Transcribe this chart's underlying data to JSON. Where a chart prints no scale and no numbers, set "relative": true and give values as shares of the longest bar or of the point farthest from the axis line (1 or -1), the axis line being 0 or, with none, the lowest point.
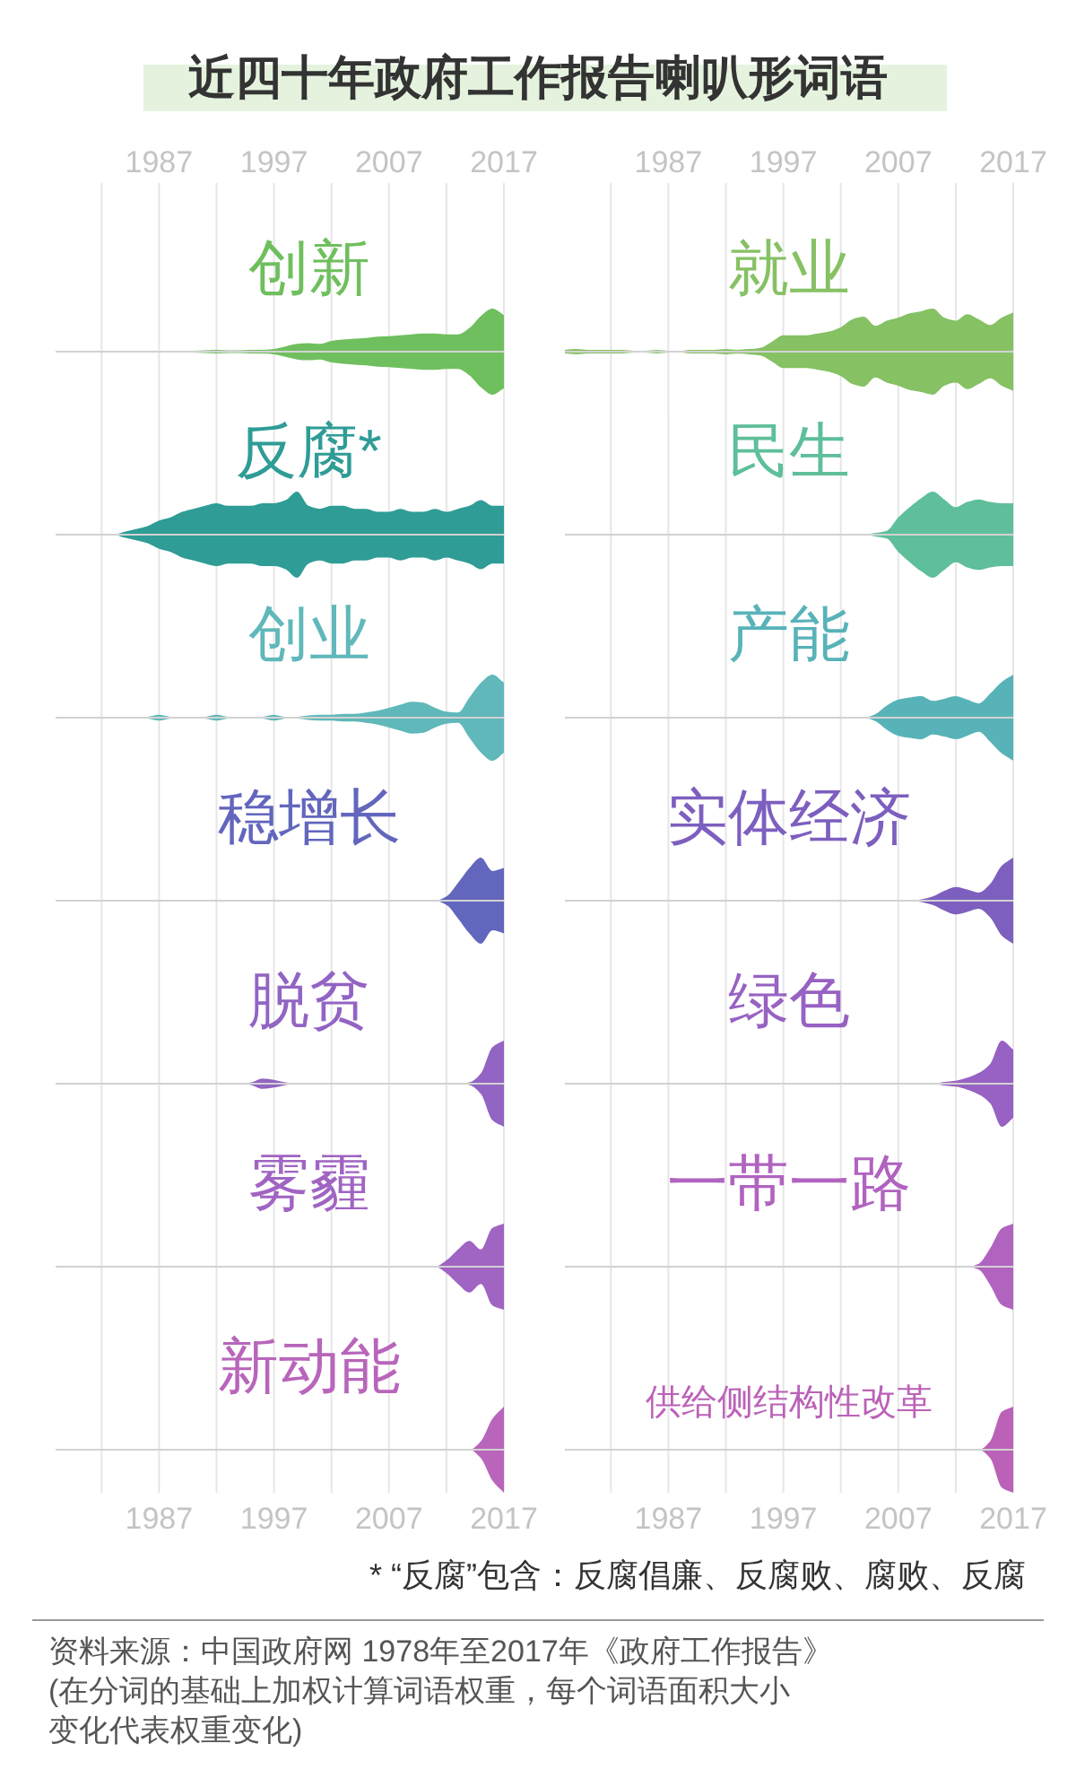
{
  "chart_data": [
    {
      "type": "area",
      "relative": true,
      "title": "近四十年政府工作报告喇叭形词语",
      "x": [
        1978,
        1979,
        1980,
        1981,
        1982,
        1983,
        1984,
        1985,
        1986,
        1987,
        1988,
        1989,
        1990,
        1991,
        1992,
        1993,
        1994,
        1995,
        1996,
        1997,
        1998,
        1999,
        2000,
        2001,
        2002,
        2003,
        2004,
        2005,
        2006,
        2007,
        2008,
        2009,
        2010,
        2011,
        2012,
        2013,
        2014,
        2015,
        2016,
        2017
      ],
      "xlim": [
        1978,
        2017
      ],
      "xticks": [
        {
          "value": 1982,
          "label": null
        },
        1987,
        {
          "value": 1992,
          "label": null
        },
        1997,
        {
          "value": 2002,
          "label": null
        },
        2007,
        {
          "value": 2012,
          "label": null
        },
        2017
      ],
      "grid": "x",
      "series": [
        {
          "name": "创新",
          "color": "#6fbf5e",
          "values": [
            0,
            0,
            0.01,
            0.01,
            0.01,
            0.01,
            0.01,
            0.02,
            0.01,
            0.01,
            0.01,
            0.01,
            0.02,
            0.03,
            0.04,
            0.03,
            0.03,
            0.04,
            0.04,
            0.06,
            0.12,
            0.18,
            0.2,
            0.18,
            0.25,
            0.28,
            0.3,
            0.32,
            0.35,
            0.36,
            0.38,
            0.4,
            0.42,
            0.42,
            0.4,
            0.4,
            0.55,
            0.83,
            1,
            0.85
          ]
        }
      ]
    },
    {
      "type": "area",
      "relative": true,
      "x": [
        1978,
        1979,
        1980,
        1981,
        1982,
        1983,
        1984,
        1985,
        1986,
        1987,
        1988,
        1989,
        1990,
        1991,
        1992,
        1993,
        1994,
        1995,
        1996,
        1997,
        1998,
        1999,
        2000,
        2001,
        2002,
        2003,
        2004,
        2005,
        2006,
        2007,
        2008,
        2009,
        2010,
        2011,
        2012,
        2013,
        2014,
        2015,
        2016,
        2017
      ],
      "xlim": [
        1978,
        2017
      ],
      "xticks": [
        {
          "value": 1982,
          "label": null
        },
        1987,
        {
          "value": 1992,
          "label": null
        },
        1997,
        {
          "value": 2002,
          "label": null
        },
        2007,
        {
          "value": 2012,
          "label": null
        },
        2017
      ],
      "grid": "x",
      "series": [
        {
          "name": "就业",
          "color": "#86c164",
          "values": [
            0.04,
            0.06,
            0.04,
            0.04,
            0.04,
            0.04,
            0.02,
            0.02,
            0.04,
            0.02,
            0.02,
            0.04,
            0.04,
            0.04,
            0.06,
            0.04,
            0.06,
            0.09,
            0.23,
            0.38,
            0.38,
            0.38,
            0.42,
            0.47,
            0.57,
            0.75,
            0.81,
            0.6,
            0.72,
            0.79,
            0.89,
            0.94,
            1,
            0.79,
            0.72,
            0.87,
            0.75,
            0.62,
            0.79,
            0.91
          ]
        }
      ]
    },
    {
      "type": "area",
      "relative": true,
      "x": [
        1978,
        1979,
        1980,
        1981,
        1982,
        1983,
        1984,
        1985,
        1986,
        1987,
        1988,
        1989,
        1990,
        1991,
        1992,
        1993,
        1994,
        1995,
        1996,
        1997,
        1998,
        1999,
        2000,
        2001,
        2002,
        2003,
        2004,
        2005,
        2006,
        2007,
        2008,
        2009,
        2010,
        2011,
        2012,
        2013,
        2014,
        2015,
        2016,
        2017
      ],
      "xlim": [
        1978,
        2017
      ],
      "xticks": [
        1982,
        1987,
        1992,
        1997,
        2002,
        2007,
        2012,
        2017
      ],
      "tick_labels": false,
      "grid": "x",
      "series": [
        {
          "name": "反腐*",
          "color": "#2f9c96",
          "values": [
            0,
            0,
            0,
            0,
            0,
            0,
            0.07,
            0.13,
            0.2,
            0.33,
            0.4,
            0.53,
            0.6,
            0.67,
            0.73,
            0.67,
            0.67,
            0.67,
            0.73,
            0.73,
            0.8,
            1,
            0.67,
            0.6,
            0.67,
            0.67,
            0.6,
            0.6,
            0.53,
            0.53,
            0.6,
            0.53,
            0.53,
            0.6,
            0.53,
            0.6,
            0.67,
            0.8,
            0.67,
            0.67
          ]
        }
      ]
    },
    {
      "type": "area",
      "relative": true,
      "x": [
        1978,
        1979,
        1980,
        1981,
        1982,
        1983,
        1984,
        1985,
        1986,
        1987,
        1988,
        1989,
        1990,
        1991,
        1992,
        1993,
        1994,
        1995,
        1996,
        1997,
        1998,
        1999,
        2000,
        2001,
        2002,
        2003,
        2004,
        2005,
        2006,
        2007,
        2008,
        2009,
        2010,
        2011,
        2012,
        2013,
        2014,
        2015,
        2016,
        2017
      ],
      "xlim": [
        1978,
        2017
      ],
      "xticks": [
        1982,
        1987,
        1992,
        1997,
        2002,
        2007,
        2012,
        2017
      ],
      "tick_labels": false,
      "grid": "x",
      "series": [
        {
          "name": "民生",
          "color": "#5ebf9a",
          "values": [
            0,
            0,
            0,
            0,
            0,
            0,
            0,
            0,
            0,
            0,
            0,
            0,
            0,
            0,
            0,
            0,
            0,
            0,
            0,
            0,
            0,
            0,
            0,
            0,
            0,
            0,
            0,
            0.04,
            0.09,
            0.4,
            0.64,
            0.85,
            1,
            0.82,
            0.64,
            0.76,
            0.82,
            0.76,
            0.73,
            0.73
          ]
        }
      ]
    },
    {
      "type": "area",
      "relative": true,
      "x": [
        1978,
        1979,
        1980,
        1981,
        1982,
        1983,
        1984,
        1985,
        1986,
        1987,
        1988,
        1989,
        1990,
        1991,
        1992,
        1993,
        1994,
        1995,
        1996,
        1997,
        1998,
        1999,
        2000,
        2001,
        2002,
        2003,
        2004,
        2005,
        2006,
        2007,
        2008,
        2009,
        2010,
        2011,
        2012,
        2013,
        2014,
        2015,
        2016,
        2017
      ],
      "xlim": [
        1978,
        2017
      ],
      "xticks": [
        1982,
        1987,
        1992,
        1997,
        2002,
        2007,
        2012,
        2017
      ],
      "tick_labels": false,
      "grid": "x",
      "series": [
        {
          "name": "创业",
          "color": "#60b8ba",
          "values": [
            0,
            0,
            0,
            0,
            0,
            0,
            0,
            0,
            0.02,
            0.07,
            0.02,
            0,
            0,
            0.02,
            0.07,
            0.02,
            0,
            0,
            0.02,
            0.07,
            0.02,
            0.02,
            0.05,
            0.07,
            0.07,
            0.09,
            0.09,
            0.12,
            0.16,
            0.23,
            0.3,
            0.37,
            0.35,
            0.23,
            0.14,
            0.12,
            0.47,
            0.81,
            1,
            0.81
          ]
        }
      ]
    },
    {
      "type": "area",
      "relative": true,
      "x": [
        1978,
        1979,
        1980,
        1981,
        1982,
        1983,
        1984,
        1985,
        1986,
        1987,
        1988,
        1989,
        1990,
        1991,
        1992,
        1993,
        1994,
        1995,
        1996,
        1997,
        1998,
        1999,
        2000,
        2001,
        2002,
        2003,
        2004,
        2005,
        2006,
        2007,
        2008,
        2009,
        2010,
        2011,
        2012,
        2013,
        2014,
        2015,
        2016,
        2017
      ],
      "xlim": [
        1978,
        2017
      ],
      "xticks": [
        1982,
        1987,
        1992,
        1997,
        2002,
        2007,
        2012,
        2017
      ],
      "tick_labels": false,
      "grid": "x",
      "series": [
        {
          "name": "产能",
          "color": "#58b3b8",
          "values": [
            0,
            0,
            0,
            0,
            0,
            0,
            0,
            0,
            0,
            0,
            0,
            0,
            0,
            0,
            0,
            0,
            0,
            0,
            0,
            0,
            0,
            0,
            0,
            0,
            0,
            0,
            0,
            0.08,
            0.28,
            0.42,
            0.47,
            0.5,
            0.39,
            0.44,
            0.5,
            0.42,
            0.33,
            0.56,
            0.83,
            1
          ]
        }
      ]
    },
    {
      "type": "area",
      "relative": true,
      "x": [
        1978,
        1979,
        1980,
        1981,
        1982,
        1983,
        1984,
        1985,
        1986,
        1987,
        1988,
        1989,
        1990,
        1991,
        1992,
        1993,
        1994,
        1995,
        1996,
        1997,
        1998,
        1999,
        2000,
        2001,
        2002,
        2003,
        2004,
        2005,
        2006,
        2007,
        2008,
        2009,
        2010,
        2011,
        2012,
        2013,
        2014,
        2015,
        2016,
        2017
      ],
      "xlim": [
        1978,
        2017
      ],
      "xticks": [
        1982,
        1987,
        1992,
        1997,
        2002,
        2007,
        2012,
        2017
      ],
      "tick_labels": false,
      "grid": "x",
      "series": [
        {
          "name": "稳增长",
          "color": "#6266bd",
          "values": [
            0,
            0,
            0,
            0,
            0,
            0,
            0,
            0,
            0,
            0,
            0,
            0,
            0,
            0,
            0,
            0,
            0,
            0,
            0,
            0,
            0,
            0,
            0,
            0,
            0,
            0,
            0,
            0,
            0,
            0,
            0,
            0,
            0,
            0,
            0.1,
            0.41,
            0.76,
            1,
            0.69,
            0.76
          ]
        }
      ]
    },
    {
      "type": "area",
      "relative": true,
      "x": [
        1978,
        1979,
        1980,
        1981,
        1982,
        1983,
        1984,
        1985,
        1986,
        1987,
        1988,
        1989,
        1990,
        1991,
        1992,
        1993,
        1994,
        1995,
        1996,
        1997,
        1998,
        1999,
        2000,
        2001,
        2002,
        2003,
        2004,
        2005,
        2006,
        2007,
        2008,
        2009,
        2010,
        2011,
        2012,
        2013,
        2014,
        2015,
        2016,
        2017
      ],
      "xlim": [
        1978,
        2017
      ],
      "xticks": [
        1982,
        1987,
        1992,
        1997,
        2002,
        2007,
        2012,
        2017
      ],
      "tick_labels": false,
      "grid": "x",
      "series": [
        {
          "name": "实体经济",
          "color": "#7d5fbf",
          "values": [
            0,
            0,
            0,
            0,
            0,
            0,
            0,
            0,
            0,
            0,
            0,
            0,
            0,
            0,
            0,
            0,
            0,
            0,
            0,
            0,
            0,
            0,
            0,
            0,
            0,
            0,
            0,
            0,
            0,
            0,
            0,
            0.03,
            0.1,
            0.23,
            0.32,
            0.26,
            0.19,
            0.39,
            0.81,
            1
          ]
        }
      ]
    },
    {
      "type": "area",
      "relative": true,
      "x": [
        1978,
        1979,
        1980,
        1981,
        1982,
        1983,
        1984,
        1985,
        1986,
        1987,
        1988,
        1989,
        1990,
        1991,
        1992,
        1993,
        1994,
        1995,
        1996,
        1997,
        1998,
        1999,
        2000,
        2001,
        2002,
        2003,
        2004,
        2005,
        2006,
        2007,
        2008,
        2009,
        2010,
        2011,
        2012,
        2013,
        2014,
        2015,
        2016,
        2017
      ],
      "xlim": [
        1978,
        2017
      ],
      "xticks": [
        1982,
        1987,
        1992,
        1997,
        2002,
        2007,
        2012,
        2017
      ],
      "tick_labels": false,
      "grid": "x",
      "series": [
        {
          "name": "脱贫",
          "color": "#9264c3",
          "values": [
            0,
            0,
            0,
            0,
            0,
            0,
            0,
            0,
            0,
            0,
            0,
            0,
            0,
            0,
            0,
            0,
            0,
            0.03,
            0.12,
            0.09,
            0.03,
            0,
            0,
            0,
            0,
            0,
            0,
            0,
            0,
            0,
            0,
            0,
            0,
            0,
            0,
            0,
            0.03,
            0.24,
            0.85,
            1
          ]
        }
      ]
    },
    {
      "type": "area",
      "relative": true,
      "x": [
        1978,
        1979,
        1980,
        1981,
        1982,
        1983,
        1984,
        1985,
        1986,
        1987,
        1988,
        1989,
        1990,
        1991,
        1992,
        1993,
        1994,
        1995,
        1996,
        1997,
        1998,
        1999,
        2000,
        2001,
        2002,
        2003,
        2004,
        2005,
        2006,
        2007,
        2008,
        2009,
        2010,
        2011,
        2012,
        2013,
        2014,
        2015,
        2016,
        2017
      ],
      "xlim": [
        1978,
        2017
      ],
      "xticks": [
        1982,
        1987,
        1992,
        1997,
        2002,
        2007,
        2012,
        2017
      ],
      "tick_labels": false,
      "grid": "x",
      "series": [
        {
          "name": "绿色",
          "color": "#9762c3",
          "values": [
            0,
            0,
            0,
            0,
            0,
            0,
            0,
            0,
            0,
            0,
            0,
            0,
            0,
            0,
            0,
            0,
            0,
            0,
            0,
            0,
            0,
            0,
            0,
            0,
            0,
            0,
            0,
            0,
            0,
            0,
            0,
            0,
            0,
            0.04,
            0.07,
            0.14,
            0.25,
            0.46,
            1,
            0.79
          ]
        }
      ]
    },
    {
      "type": "area",
      "relative": true,
      "x": [
        1978,
        1979,
        1980,
        1981,
        1982,
        1983,
        1984,
        1985,
        1986,
        1987,
        1988,
        1989,
        1990,
        1991,
        1992,
        1993,
        1994,
        1995,
        1996,
        1997,
        1998,
        1999,
        2000,
        2001,
        2002,
        2003,
        2004,
        2005,
        2006,
        2007,
        2008,
        2009,
        2010,
        2011,
        2012,
        2013,
        2014,
        2015,
        2016,
        2017
      ],
      "xlim": [
        1978,
        2017
      ],
      "xticks": [
        1982,
        1987,
        1992,
        1997,
        2002,
        2007,
        2012,
        2017
      ],
      "tick_labels": false,
      "grid": "x",
      "series": [
        {
          "name": "雾霾",
          "color": "#a064c2",
          "values": [
            0,
            0,
            0,
            0,
            0,
            0,
            0,
            0,
            0,
            0,
            0,
            0,
            0,
            0,
            0,
            0,
            0,
            0,
            0,
            0,
            0,
            0,
            0,
            0,
            0,
            0,
            0,
            0,
            0,
            0,
            0,
            0,
            0,
            0,
            0.15,
            0.4,
            0.6,
            0.4,
            0.9,
            1
          ]
        }
      ]
    },
    {
      "type": "area",
      "relative": true,
      "x": [
        1978,
        1979,
        1980,
        1981,
        1982,
        1983,
        1984,
        1985,
        1986,
        1987,
        1988,
        1989,
        1990,
        1991,
        1992,
        1993,
        1994,
        1995,
        1996,
        1997,
        1998,
        1999,
        2000,
        2001,
        2002,
        2003,
        2004,
        2005,
        2006,
        2007,
        2008,
        2009,
        2010,
        2011,
        2012,
        2013,
        2014,
        2015,
        2016,
        2017
      ],
      "xlim": [
        1978,
        2017
      ],
      "xticks": [
        1982,
        1987,
        1992,
        1997,
        2002,
        2007,
        2012,
        2017
      ],
      "tick_labels": false,
      "grid": "x",
      "series": [
        {
          "name": "一带一路",
          "color": "#b163c0",
          "values": [
            0,
            0,
            0,
            0,
            0,
            0,
            0,
            0,
            0,
            0,
            0,
            0,
            0,
            0,
            0,
            0,
            0,
            0,
            0,
            0,
            0,
            0,
            0,
            0,
            0,
            0,
            0,
            0,
            0,
            0,
            0,
            0,
            0,
            0,
            0,
            0,
            0.07,
            0.43,
            0.89,
            1
          ]
        }
      ]
    },
    {
      "type": "area",
      "relative": true,
      "x": [
        1978,
        1979,
        1980,
        1981,
        1982,
        1983,
        1984,
        1985,
        1986,
        1987,
        1988,
        1989,
        1990,
        1991,
        1992,
        1993,
        1994,
        1995,
        1996,
        1997,
        1998,
        1999,
        2000,
        2001,
        2002,
        2003,
        2004,
        2005,
        2006,
        2007,
        2008,
        2009,
        2010,
        2011,
        2012,
        2013,
        2014,
        2015,
        2016,
        2017
      ],
      "xlim": [
        1978,
        2017
      ],
      "xticks": [
        {
          "value": 1982,
          "label": null
        },
        1987,
        {
          "value": 1992,
          "label": null
        },
        1997,
        {
          "value": 2002,
          "label": null
        },
        2007,
        {
          "value": 2012,
          "label": null
        },
        2017
      ],
      "grid": "x",
      "series": [
        {
          "name": "新动能",
          "color": "#b865bb",
          "values": [
            0,
            0,
            0,
            0,
            0,
            0,
            0,
            0,
            0,
            0,
            0,
            0,
            0,
            0,
            0,
            0,
            0,
            0,
            0,
            0,
            0,
            0,
            0,
            0,
            0,
            0,
            0,
            0,
            0,
            0,
            0,
            0,
            0,
            0,
            0,
            0,
            0,
            0.2,
            0.72,
            1
          ]
        }
      ]
    },
    {
      "type": "area",
      "relative": true,
      "x": [
        1978,
        1979,
        1980,
        1981,
        1982,
        1983,
        1984,
        1985,
        1986,
        1987,
        1988,
        1989,
        1990,
        1991,
        1992,
        1993,
        1994,
        1995,
        1996,
        1997,
        1998,
        1999,
        2000,
        2001,
        2002,
        2003,
        2004,
        2005,
        2006,
        2007,
        2008,
        2009,
        2010,
        2011,
        2012,
        2013,
        2014,
        2015,
        2016,
        2017
      ],
      "xlim": [
        1978,
        2017
      ],
      "xticks": [
        {
          "value": 1982,
          "label": null
        },
        1987,
        {
          "value": 1992,
          "label": null
        },
        1997,
        {
          "value": 2002,
          "label": null
        },
        2007,
        {
          "value": 2012,
          "label": null
        },
        2017
      ],
      "grid": "x",
      "series": [
        {
          "name": "供给侧结构性改革",
          "color": "#bb62b8",
          "values": [
            0,
            0,
            0,
            0,
            0,
            0,
            0,
            0,
            0,
            0,
            0,
            0,
            0,
            0,
            0,
            0,
            0,
            0,
            0,
            0,
            0,
            0,
            0,
            0,
            0,
            0,
            0,
            0,
            0,
            0,
            0,
            0,
            0,
            0,
            0,
            0,
            0,
            0.2,
            0.88,
            1
          ]
        }
      ],
      "annotations": [
        "* “反腐”包含：反腐倡廉、反腐败、腐败、反腐",
        "资料来源：中国政府网 1978年至2017年《政府工作报告》",
        "(在分词的基础上加权计算词语权重，每个词语面积大小变化代表权重变化)"
      ]
    }
  ]
}
